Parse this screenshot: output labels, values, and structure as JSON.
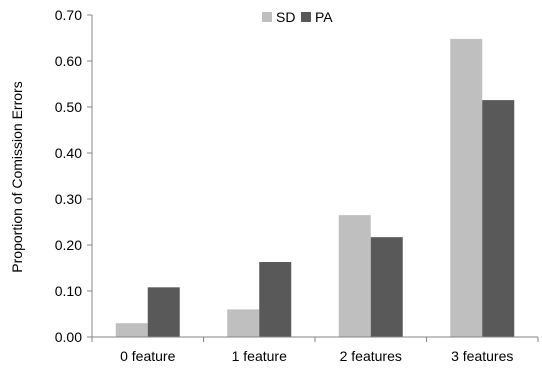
{
  "chart_data": {
    "type": "bar",
    "title": "",
    "xlabel": "",
    "ylabel": "Proportion of Comission Errors",
    "categories": [
      "0 feature",
      "1 feature",
      "2 features",
      "3 features"
    ],
    "series": [
      {
        "name": "SD",
        "color": "#bfbfbf",
        "values": [
          0.03,
          0.06,
          0.265,
          0.648
        ]
      },
      {
        "name": "PA",
        "color": "#595959",
        "values": [
          0.108,
          0.163,
          0.217,
          0.515
        ]
      }
    ],
    "ylim": [
      0,
      0.7
    ],
    "yticks": [
      "0.00",
      "0.10",
      "0.20",
      "0.30",
      "0.40",
      "0.50",
      "0.60",
      "0.70"
    ],
    "grid": false,
    "legend_position": "top-center"
  }
}
